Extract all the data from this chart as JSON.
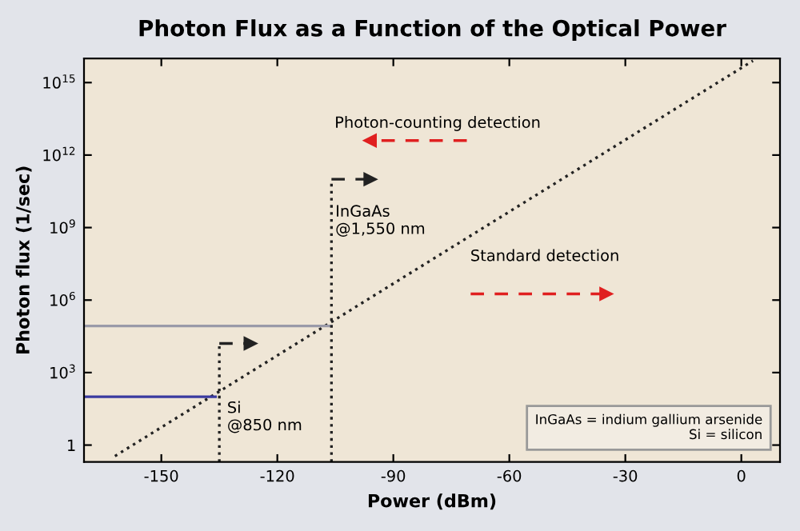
{
  "chart_data": {
    "type": "line",
    "title": "Photon Flux as a Function of the Optical Power",
    "xlabel": "Power (dBm)",
    "ylabel": "Photon flux (1/sec)",
    "log": "y",
    "xlim": [
      -170,
      10
    ],
    "ylim": [
      0.2,
      1e+16
    ],
    "xticks": [
      -150,
      -120,
      -90,
      -60,
      -30,
      0
    ],
    "yticks": [
      1,
      {
        "value": 1000,
        "label": "10$^{3}$"
      },
      {
        "value": 1000000,
        "label": "10$^{6}$"
      },
      {
        "value": 1000000000,
        "label": "10$^{9}$"
      },
      {
        "value": 1000000000000,
        "label": "10$^{12}$"
      },
      {
        "value": 1000000000000000,
        "label": "10$^{15}$"
      }
    ],
    "grid": false,
    "legend": false,
    "series": [
      {
        "color": "#222222",
        "line_style": "dotted",
        "x": [
          -162,
          3
        ],
        "values": [
          0.35,
          8000000000000000.0
        ]
      },
      {
        "color": "#3a3aa0",
        "line_style": "solid",
        "x": [
          -170,
          -136
        ],
        "values": [
          100,
          100
        ]
      },
      {
        "color": "#9a9aa8",
        "line_style": "solid",
        "x": [
          -170,
          -106
        ],
        "values": [
          85000,
          85000
        ]
      },
      {
        "color": "#222222",
        "line_style": "dotted",
        "x": [
          -135,
          -135
        ],
        "values": [
          0.2,
          16000
        ]
      },
      {
        "color": "#222222",
        "line_style": "dotted",
        "x": [
          -106,
          -106
        ],
        "values": [
          0.2,
          100000000000.0
        ]
      },
      {
        "color": "#222222",
        "line_style": "dashed",
        "marker": "triangle",
        "x": [
          -135,
          -127
        ],
        "values": [
          16000,
          16000
        ]
      },
      {
        "color": "#222222",
        "line_style": "dashed",
        "marker": "triangle",
        "x": [
          -106,
          -96
        ],
        "values": [
          100000000000.0,
          100000000000.0
        ]
      },
      {
        "color": "#e02020",
        "line_style": "dashed",
        "marker": "triangle",
        "x": [
          -71,
          -96
        ],
        "values": [
          4000000000000.0,
          4000000000000.0
        ]
      },
      {
        "color": "#e02020",
        "line_style": "dashed",
        "marker": "triangle",
        "x": [
          -70,
          -35
        ],
        "values": [
          1800000.0,
          1800000.0
        ]
      }
    ],
    "annotations": [
      "Photon-counting detection",
      "Standard detection",
      {
        "text": "InGaAs\n@1,550 nm",
        "x": -105,
        "y": 400000000.0
      },
      {
        "text": "Si\n@850 nm",
        "x": -133,
        "y": 3
      },
      "InGaAs = indium gallium arsenide\nSi = silicon"
    ]
  }
}
